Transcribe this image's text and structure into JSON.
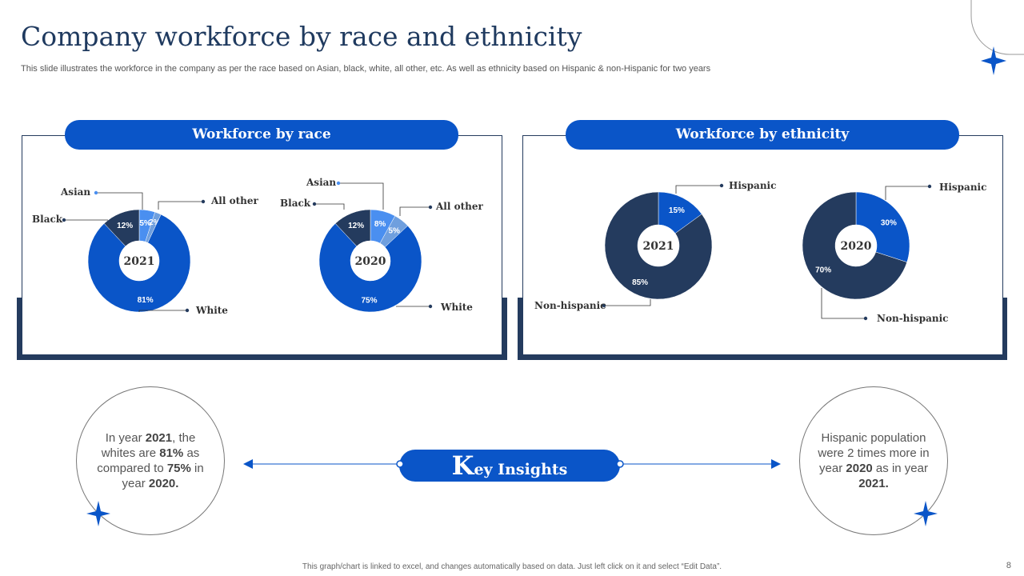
{
  "slide": {
    "title": "Company workforce by race and ethnicity",
    "subtitle": "This slide illustrates the workforce in the company as per the race based on Asian, black, white, all other, etc. As well as ethnicity based on Hispanic & non-Hispanic for two years",
    "footer": "This graph/chart is linked to excel, and changes automatically based on data. Just left click on it and select “Edit Data”.",
    "page_number": "8"
  },
  "panels": {
    "race_header": "Workforce by race",
    "ethnicity_header": "Workforce by ethnicity"
  },
  "chart_data": [
    {
      "type": "pie",
      "chart": "donut",
      "center_label": "2021",
      "categories": [
        "Asian",
        "All other",
        "White",
        "Black"
      ],
      "values": [
        5,
        2,
        81,
        12
      ],
      "value_labels": [
        "5%",
        "2%",
        "81%",
        "12%"
      ],
      "colors": [
        "#4a8ff0",
        "#6f9fde",
        "#0a55c8",
        "#243b5e"
      ]
    },
    {
      "type": "pie",
      "chart": "donut",
      "center_label": "2020",
      "categories": [
        "Asian",
        "All other",
        "White",
        "Black"
      ],
      "values": [
        8,
        5,
        75,
        12
      ],
      "value_labels": [
        "8%",
        "5%",
        "75%",
        "12%"
      ],
      "colors": [
        "#4a8ff0",
        "#6f9fde",
        "#0a55c8",
        "#243b5e"
      ]
    },
    {
      "type": "pie",
      "chart": "donut",
      "center_label": "2021",
      "categories": [
        "Hispanic",
        "Non-hispanic"
      ],
      "values": [
        15,
        85
      ],
      "value_labels": [
        "15%",
        "85%"
      ],
      "colors": [
        "#0a55c8",
        "#243b5e"
      ]
    },
    {
      "type": "pie",
      "chart": "donut",
      "center_label": "2020",
      "categories": [
        "Hispanic",
        "Non-hispanic"
      ],
      "values": [
        30,
        70
      ],
      "value_labels": [
        "30%",
        "70%"
      ],
      "colors": [
        "#0a55c8",
        "#243b5e"
      ]
    }
  ],
  "insights": {
    "key_first": "K",
    "key_rest": "ey Insights",
    "left": {
      "t1": "In year ",
      "b1": "2021",
      "t2": ", the whites are ",
      "b2": "81%",
      "t3": " as compared to ",
      "b3": "75%",
      "t4": " in year ",
      "b4": "2020."
    },
    "right": {
      "t1": "Hispanic population were 2 times more in year ",
      "b1": "2020",
      "t2": " as in year ",
      "b2": "2021."
    }
  },
  "colors": {
    "primary": "#0a55c8",
    "dark": "#243b5e",
    "light": "#4a8ff0"
  }
}
